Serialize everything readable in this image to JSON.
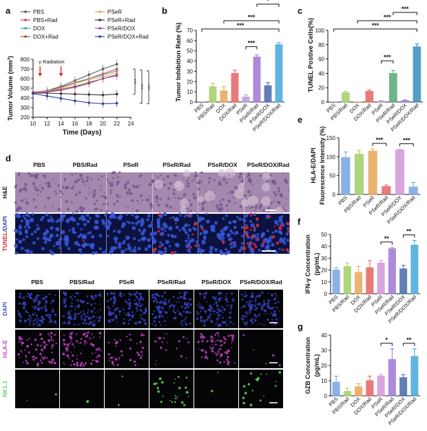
{
  "panels": {
    "a": {
      "letter": "a",
      "chart_type": "line",
      "xlabel": "Time (Days)",
      "ylabel": "Tumor Volume (mm³)",
      "xticks": [
        10,
        12,
        14,
        16,
        18,
        20,
        22,
        24
      ],
      "yticks": [
        200,
        300,
        400,
        500,
        600,
        700,
        800
      ],
      "xlim": [
        10,
        24
      ],
      "ylim": [
        200,
        800
      ],
      "annotation": "γ Radiation",
      "radiation_days": [
        11,
        14
      ],
      "sig": [
        "***",
        "***",
        "***"
      ],
      "x": [
        10,
        12,
        14,
        16,
        18,
        20,
        22
      ],
      "series": [
        {
          "name": "PBS",
          "color": "#555555",
          "values": [
            460,
            475,
            520,
            580,
            640,
            700,
            750
          ]
        },
        {
          "name": "PBS+Rad",
          "color": "#e0334d",
          "values": [
            455,
            470,
            510,
            560,
            600,
            650,
            700
          ]
        },
        {
          "name": "DOX",
          "color": "#3aa8a0",
          "values": [
            458,
            472,
            505,
            555,
            600,
            640,
            680
          ]
        },
        {
          "name": "DOX+Rad",
          "color": "#8b5a2b",
          "values": [
            455,
            465,
            490,
            520,
            560,
            600,
            640
          ]
        },
        {
          "name": "PSeR",
          "color": "#e8a15f",
          "values": [
            460,
            470,
            500,
            550,
            590,
            620,
            660
          ]
        },
        {
          "name": "PSeR+Rad",
          "color": "#333333",
          "values": [
            450,
            450,
            445,
            440,
            435,
            430,
            440
          ]
        },
        {
          "name": "PSeR/DOX",
          "color": "#a04aa0",
          "values": [
            455,
            460,
            480,
            510,
            550,
            600,
            630
          ]
        },
        {
          "name": "PSeR/DOX+Rad",
          "color": "#2c3e9c",
          "values": [
            445,
            420,
            395,
            370,
            350,
            340,
            345
          ]
        }
      ]
    },
    "b": {
      "letter": "b",
      "chart_type": "bar",
      "ylabel": "Tumor Inhibition Rate (%)",
      "yticks": [
        0,
        10,
        20,
        30,
        40,
        50,
        60,
        70
      ],
      "ylim": [
        0,
        70
      ],
      "categories": [
        "PBS",
        "PBS/Rad",
        "DOX",
        "DOX/Rad",
        "PSeR",
        "PSeR/Rad",
        "PSeR/DOX",
        "PSeR/DOX/Rad"
      ],
      "values": [
        0,
        15,
        11,
        28,
        5,
        44,
        16,
        56
      ],
      "errors": [
        0,
        3,
        4,
        3,
        2,
        2,
        3,
        2
      ],
      "colors": [
        "#6b8fd6",
        "#9ccc5b",
        "#e8a04e",
        "#e45a5a",
        "#bb8fd6",
        "#9b6ed1",
        "#3b5fa8",
        "#3aa2d8"
      ],
      "brackets": [
        {
          "from": 0,
          "to": 7,
          "label": "***"
        },
        {
          "from": 2,
          "to": 7,
          "label": "***"
        },
        {
          "from": 4,
          "to": 5,
          "label": "***"
        },
        {
          "from": 5,
          "to": 7,
          "label": "*"
        }
      ]
    },
    "c": {
      "letter": "c",
      "chart_type": "bar",
      "ylabel": "TUNEL Postive Cells(%)",
      "yticks": [
        0,
        20,
        40,
        60,
        80,
        100
      ],
      "ylim": [
        0,
        100
      ],
      "categories": [
        "PBS",
        "PBS/Rad",
        "DOX",
        "DOX/Rad",
        "PSeR",
        "PSeR/Rad",
        "PSeR/DOX",
        "PSeR/DOX/Rad"
      ],
      "values": [
        0,
        13,
        0,
        15,
        1,
        40,
        2,
        77
      ],
      "errors": [
        0,
        2,
        0,
        2,
        1,
        4,
        1,
        4
      ],
      "colors": [
        "#6b8fd6",
        "#9ccc5b",
        "#e8a04e",
        "#e45a5a",
        "#bb8fd6",
        "#4aa36b",
        "#9b6ed1",
        "#2a86b8"
      ],
      "brackets": [
        {
          "from": 0,
          "to": 7,
          "label": "***"
        },
        {
          "from": 2,
          "to": 7,
          "label": "***"
        },
        {
          "from": 5,
          "to": 7,
          "label": "***"
        },
        {
          "from": 4,
          "to": 5,
          "label": "***"
        }
      ]
    },
    "e": {
      "letter": "e",
      "chart_type": "bar",
      "ylabel": "HLA-E/DAPI Fluorescence Intensity (%)",
      "ylabel_line1": "HLA-E/DAPI",
      "ylabel_line2": "Fluorescence Intensity (%)",
      "yticks": [
        0,
        50,
        100,
        150
      ],
      "ylim": [
        0,
        150
      ],
      "categories": [
        "PBS",
        "PBS/Rad",
        "PSeR",
        "PSeR/Rad",
        "PSeR/DOX",
        "PSeR/DOX/Rad"
      ],
      "values": [
        98,
        107,
        115,
        21,
        118,
        20
      ],
      "errors": [
        15,
        10,
        6,
        4,
        2,
        12
      ],
      "colors": [
        "#6fa0e0",
        "#9ccc5b",
        "#e8a04e",
        "#e45a5a",
        "#d08fd8",
        "#6fa0e0"
      ],
      "brackets": [
        {
          "from": 2,
          "to": 3,
          "label": "***"
        },
        {
          "from": 4,
          "to": 5,
          "label": "***"
        }
      ]
    },
    "f": {
      "letter": "f",
      "chart_type": "bar",
      "ylabel": "IFN-γ Concentration (pg/mL)",
      "ylabel_line1": "IFN-γ Concentration",
      "ylabel_line2": "(pg/mL)",
      "yticks": [
        0,
        10,
        20,
        30,
        40,
        50
      ],
      "ylim": [
        0,
        50
      ],
      "categories": [
        "PBS",
        "PBS/Rad",
        "DOX",
        "DOX/Rad",
        "PSeR",
        "PSeR/Rad",
        "PSeR/DOX",
        "PSeR/DOX/Rad"
      ],
      "values": [
        20,
        23,
        18,
        22,
        26,
        38,
        21,
        41
      ],
      "errors": [
        2,
        3,
        5,
        6,
        2,
        1,
        3,
        4
      ],
      "colors": [
        "#6fa0e0",
        "#9ccc5b",
        "#e8a04e",
        "#e45a5a",
        "#d08fd8",
        "#9b6ed1",
        "#3b5fa8",
        "#3aa2d8"
      ],
      "brackets": [
        {
          "from": 4,
          "to": 5,
          "label": "**"
        },
        {
          "from": 6,
          "to": 7,
          "label": "**"
        }
      ]
    },
    "g": {
      "letter": "g",
      "chart_type": "bar",
      "ylabel": "GZB Concentration (pg/mL)",
      "ylabel_line1": "GZB Concentration",
      "ylabel_line2": "(pg/mL)",
      "yticks": [
        0,
        10,
        20,
        30,
        40
      ],
      "ylim": [
        0,
        40
      ],
      "categories": [
        "PBS",
        "PBS/Rad",
        "DOX",
        "DOX/Rad",
        "PSeR",
        "PSeR/Rad",
        "PSeR/DOX",
        "PSeR/DOX/Rad"
      ],
      "values": [
        9,
        3,
        6,
        10,
        13,
        24,
        12,
        26
      ],
      "errors": [
        4,
        2,
        2,
        3,
        1,
        7,
        2,
        5
      ],
      "colors": [
        "#6fa0e0",
        "#9ccc5b",
        "#e8a04e",
        "#e45a5a",
        "#d08fd8",
        "#9b6ed1",
        "#3b5fa8",
        "#3aa2d8"
      ],
      "brackets": [
        {
          "from": 4,
          "to": 5,
          "label": "*"
        },
        {
          "from": 6,
          "to": 7,
          "label": "**"
        }
      ]
    },
    "d": {
      "letter": "d",
      "top_columns": [
        "PBS",
        "PBS/Rad",
        "PSeR",
        "PSeR/Rad",
        "PSeR/DOX",
        "PSeR/DOX/Rad"
      ],
      "top_rows": [
        {
          "label": "H&E",
          "kind": "he"
        },
        {
          "label_a": "TUNEL",
          "label_b": "/DAPI",
          "kind": "tunel"
        }
      ],
      "bottom_columns": [
        "PBS",
        "PBS/Rad",
        "PSeR",
        "PSeR/Rad",
        "PSeR/DOX",
        "PSeR/DOX/Rad"
      ],
      "bottom_rows": [
        {
          "label": "DAPI",
          "kind": "dapi",
          "color": "#3b4fd8"
        },
        {
          "label": "HLA-E",
          "kind": "hla",
          "color": "#c03fc0"
        },
        {
          "label": "NK1.1",
          "kind": "nk",
          "color": "#5fd35f"
        }
      ]
    }
  },
  "chart_data": [
    {
      "type": "line",
      "title": "",
      "xlabel": "Time (Days)",
      "ylabel": "Tumor Volume (mm³)",
      "xlim": [
        10,
        24
      ],
      "ylim": [
        200,
        800
      ],
      "x": [
        10,
        12,
        14,
        16,
        18,
        20,
        22
      ],
      "series": [
        {
          "name": "PBS",
          "values": [
            460,
            475,
            520,
            580,
            640,
            700,
            750
          ]
        },
        {
          "name": "PBS+Rad",
          "values": [
            455,
            470,
            510,
            560,
            600,
            650,
            700
          ]
        },
        {
          "name": "DOX",
          "values": [
            458,
            472,
            505,
            555,
            600,
            640,
            680
          ]
        },
        {
          "name": "DOX+Rad",
          "values": [
            455,
            465,
            490,
            520,
            560,
            600,
            640
          ]
        },
        {
          "name": "PSeR",
          "values": [
            460,
            470,
            500,
            550,
            590,
            620,
            660
          ]
        },
        {
          "name": "PSeR+Rad",
          "values": [
            450,
            450,
            445,
            440,
            435,
            430,
            440
          ]
        },
        {
          "name": "PSeR/DOX",
          "values": [
            455,
            460,
            480,
            510,
            550,
            600,
            630
          ]
        },
        {
          "name": "PSeR/DOX+Rad",
          "values": [
            445,
            420,
            395,
            370,
            350,
            340,
            345
          ]
        }
      ]
    },
    {
      "type": "bar",
      "ylabel": "Tumor Inhibition Rate (%)",
      "ylim": [
        0,
        70
      ],
      "categories": [
        "PBS",
        "PBS/Rad",
        "DOX",
        "DOX/Rad",
        "PSeR",
        "PSeR/Rad",
        "PSeR/DOX",
        "PSeR/DOX/Rad"
      ],
      "values": [
        0,
        15,
        11,
        28,
        5,
        44,
        16,
        56
      ]
    },
    {
      "type": "bar",
      "ylabel": "TUNEL Postive Cells(%)",
      "ylim": [
        0,
        100
      ],
      "categories": [
        "PBS",
        "PBS/Rad",
        "DOX",
        "DOX/Rad",
        "PSeR",
        "PSeR/Rad",
        "PSeR/DOX",
        "PSeR/DOX/Rad"
      ],
      "values": [
        0,
        13,
        0,
        15,
        1,
        40,
        2,
        77
      ]
    },
    {
      "type": "bar",
      "ylabel": "HLA-E/DAPI Fluorescence Intensity (%)",
      "ylim": [
        0,
        150
      ],
      "categories": [
        "PBS",
        "PBS/Rad",
        "PSeR",
        "PSeR/Rad",
        "PSeR/DOX",
        "PSeR/DOX/Rad"
      ],
      "values": [
        98,
        107,
        115,
        21,
        118,
        20
      ]
    },
    {
      "type": "bar",
      "ylabel": "IFN-γ Concentration (pg/mL)",
      "ylim": [
        0,
        50
      ],
      "categories": [
        "PBS",
        "PBS/Rad",
        "DOX",
        "DOX/Rad",
        "PSeR",
        "PSeR/Rad",
        "PSeR/DOX",
        "PSeR/DOX/Rad"
      ],
      "values": [
        20,
        23,
        18,
        22,
        26,
        38,
        21,
        41
      ]
    },
    {
      "type": "bar",
      "ylabel": "GZB Concentration (pg/mL)",
      "ylim": [
        0,
        40
      ],
      "categories": [
        "PBS",
        "PBS/Rad",
        "DOX",
        "DOX/Rad",
        "PSeR",
        "PSeR/Rad",
        "PSeR/DOX",
        "PSeR/DOX/Rad"
      ],
      "values": [
        9,
        3,
        6,
        10,
        13,
        24,
        12,
        26
      ]
    }
  ]
}
